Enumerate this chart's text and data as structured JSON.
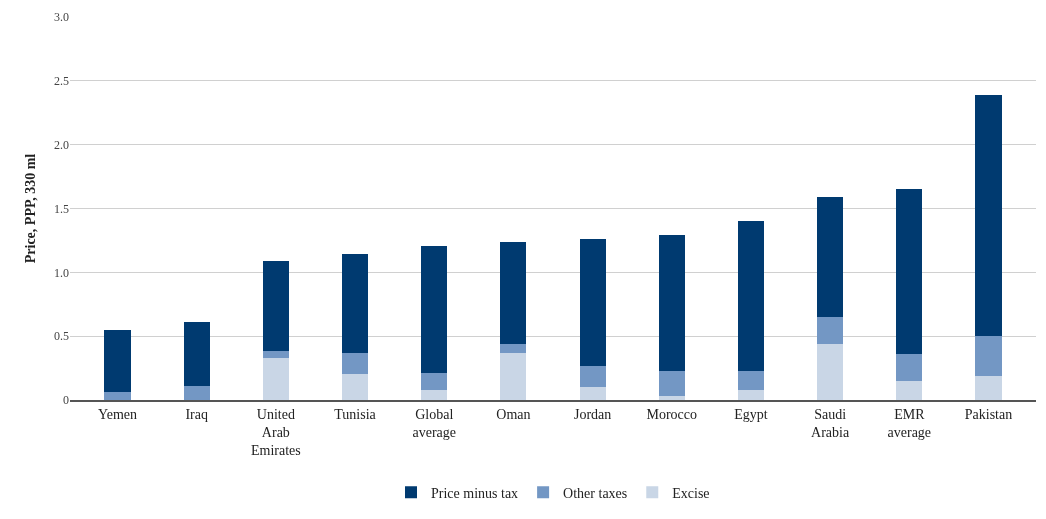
{
  "chart_data": {
    "type": "bar",
    "stacked": true,
    "ylabel": "Price, PPP, 330 ml",
    "categories": [
      "Yemen",
      "Iraq",
      "United Arab Emirates",
      "Tunisia",
      "Global average",
      "Oman",
      "Jordan",
      "Morocco",
      "Egypt",
      "Saudi Arabia",
      "EMR average",
      "Pakistan"
    ],
    "series": [
      {
        "name": "Excise",
        "color": "#c9d6e6",
        "values": [
          0,
          0,
          0.33,
          0.2,
          0.08,
          0.37,
          0.1,
          0.03,
          0.08,
          0.44,
          0.15,
          0.19
        ]
      },
      {
        "name": "Other taxes",
        "color": "#7397c4",
        "values": [
          0.06,
          0.11,
          0.05,
          0.17,
          0.13,
          0.07,
          0.17,
          0.2,
          0.15,
          0.21,
          0.21,
          0.31
        ]
      },
      {
        "name": "Price minus tax",
        "color": "#003a70",
        "values": [
          0.49,
          0.5,
          0.71,
          0.77,
          1.0,
          0.8,
          0.99,
          1.06,
          1.17,
          0.94,
          1.29,
          1.89
        ]
      }
    ],
    "ylim": [
      0,
      3.0
    ],
    "yticks": [
      0,
      0.5,
      {
        "value": 1,
        "label": "1.0"
      },
      1.5,
      {
        "value": 2,
        "label": "2.0"
      },
      2.5,
      {
        "value": 3,
        "label": "3.0"
      }
    ],
    "grid": "y",
    "legend": "bottom"
  }
}
